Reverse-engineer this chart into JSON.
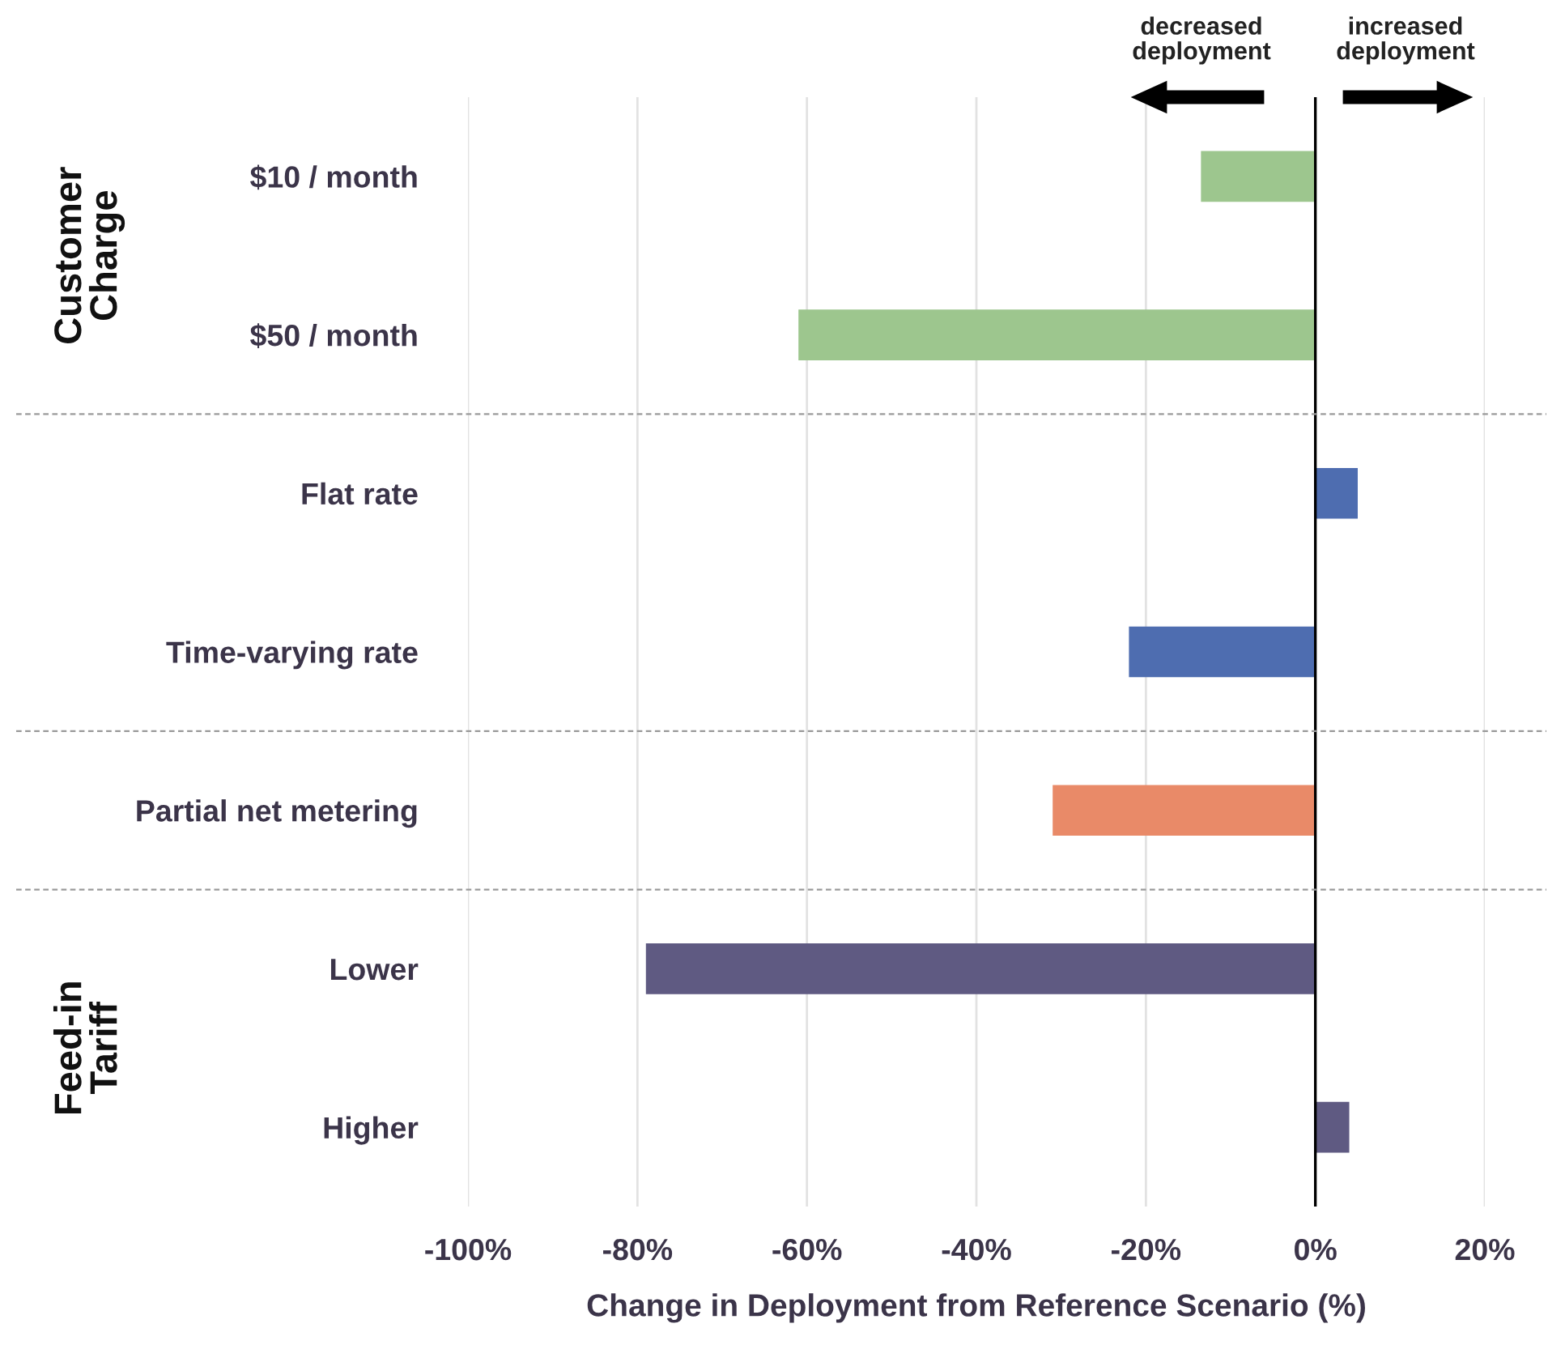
{
  "chart_data": {
    "type": "bar",
    "orientation": "horizontal",
    "categories": [
      "$10 / month",
      "$50 / month",
      "Flat rate",
      "Time-varying rate",
      "Partial net metering",
      "Lower",
      "Higher"
    ],
    "values": [
      -13.5,
      -61,
      5,
      -22,
      -31,
      -79,
      4
    ],
    "colors": [
      "#9dc68e",
      "#9dc68e",
      "#4e6db0",
      "#4e6db0",
      "#e98a68",
      "#5f5a82",
      "#5f5a82"
    ],
    "xlabel": "Change in Deployment from Reference Scenario (%)",
    "xlim": [
      -100,
      20
    ],
    "xticks": [
      {
        "value": -100,
        "label": "-100%"
      },
      {
        "value": -80,
        "label": "-80%"
      },
      {
        "value": -60,
        "label": "-60%"
      },
      {
        "value": -40,
        "label": "-40%"
      },
      {
        "value": -20,
        "label": "-20%"
      },
      {
        "value": 0,
        "label": "0%"
      },
      {
        "value": 20,
        "label": "20%"
      }
    ],
    "grid": "x",
    "ref_lines": [
      {
        "axis": "x",
        "value": 0,
        "color": "#000000",
        "line_style": "solid"
      }
    ],
    "annotations": [
      "Customer\nCharge",
      "Feed-in\nTariff",
      "decreased\ndeployment",
      "increased\ndeployment"
    ]
  }
}
